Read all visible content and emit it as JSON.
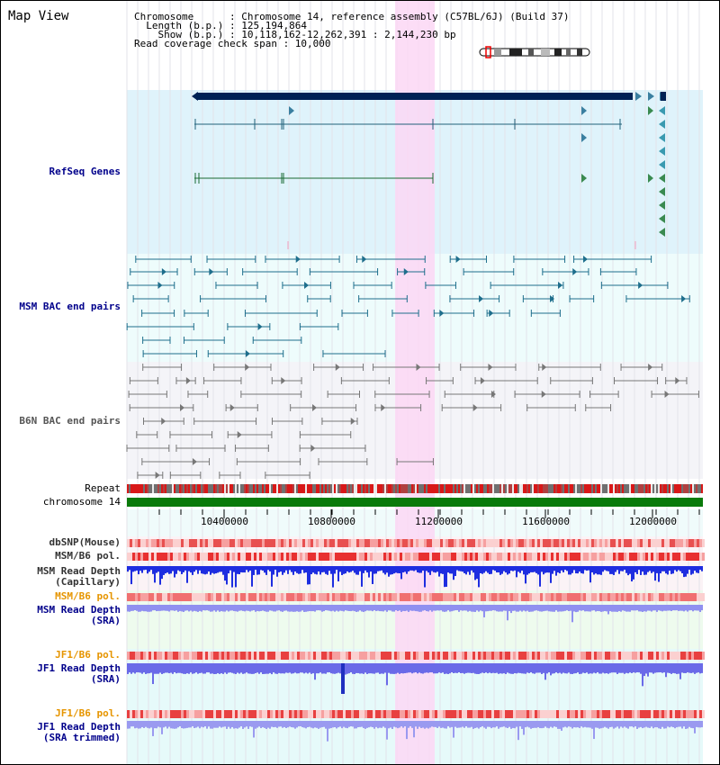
{
  "view_title": "Map View",
  "info": {
    "chromosome": "Chromosome      : Chromosome 14, reference assembly (C57BL/6J) (Build 37)",
    "length": "  Length (b.p.) : 125,194,864",
    "show": "    Show (b.p.) : 10,118,162-12,262,391 : 2,144,230 bp",
    "coverage": "Read coverage check span : 10,000"
  },
  "tracks": {
    "refseq": "RefSeq Genes",
    "msm_bac": "MSM BAC end pairs",
    "b6n_bac": "B6N BAC end pairs",
    "repeat": "Repeat",
    "chromosome": "chromosome 14",
    "dbsnp": "dbSNP(Mouse)",
    "msm_b6_pol_1": "MSM/B6 pol.",
    "msm_read_depth_cap_1": "MSM Read Depth",
    "msm_read_depth_cap_2": "(Capillary)",
    "msm_b6_pol_2": "MSM/B6 pol.",
    "msm_read_depth_sra_1": "MSM Read Depth",
    "msm_read_depth_sra_2": "(SRA)",
    "jf1_b6_pol_1": "JF1/B6 pol.",
    "jf1_read_depth_sra_1": "JF1 Read Depth",
    "jf1_read_depth_sra_2": "(SRA)",
    "jf1_b6_pol_2": "JF1/B6 pol.",
    "jf1_read_depth_trim_1": "JF1 Read Depth",
    "jf1_read_depth_trim_2": "(SRA trimmed)"
  },
  "axis": {
    "ticks": [
      "10400000",
      "10800000",
      "11200000",
      "11600000",
      "12000000"
    ]
  },
  "colors": {
    "refseq_bg": "#dff3fb",
    "msm_bg": "#eefcfc",
    "b6n_bg": "#f4f4f8",
    "highlight": "#fbd7f5",
    "gene_dark": "#002255",
    "gene_teal": "#20607a",
    "gene_green": "#1a6a30",
    "bac_teal": "#1e6e8c",
    "bac_grey": "#777777",
    "chromosome": "#0a7a0a",
    "snp_red": "#e74c4c",
    "depth_blue": "#1e2de0",
    "depth_light": "#8080f0"
  }
}
